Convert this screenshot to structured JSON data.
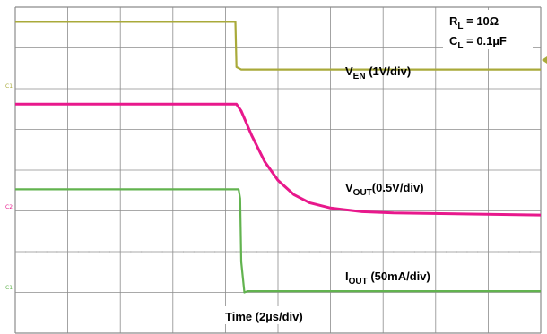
{
  "chart_data": {
    "type": "line",
    "title": "",
    "grid": true,
    "divisions": {
      "x": 10,
      "y": 8
    },
    "x_unit": "div",
    "y_unit": "div",
    "conditions": {
      "rl_main": "R",
      "rl_sub": "L",
      "rl_val": " = 10Ω",
      "cl_main": "C",
      "cl_sub": "L",
      "cl_val": " = 0.1µF"
    },
    "time_label": "Time (2µs/div)",
    "series": [
      {
        "key": "ven",
        "label_main": "V",
        "label_sub": "EN",
        "label_scale": " (1V/div)",
        "marker": "C1",
        "color": "#a9aa3a",
        "points": [
          [
            0,
            7.64
          ],
          [
            4.19,
            7.64
          ],
          [
            4.21,
            6.53
          ],
          [
            4.3,
            6.47
          ],
          [
            10,
            6.47
          ]
        ]
      },
      {
        "key": "vout",
        "label_main": "V",
        "label_sub": "OUT",
        "label_scale": "(0.5V/div)",
        "marker": "C2",
        "color": "#e8188c",
        "points": [
          [
            0,
            5.62
          ],
          [
            4.21,
            5.62
          ],
          [
            4.3,
            5.45
          ],
          [
            4.5,
            4.85
          ],
          [
            4.75,
            4.2
          ],
          [
            5.0,
            3.75
          ],
          [
            5.3,
            3.4
          ],
          [
            5.6,
            3.2
          ],
          [
            6.0,
            3.07
          ],
          [
            6.6,
            2.98
          ],
          [
            7.2,
            2.95
          ],
          [
            10,
            2.9
          ]
        ]
      },
      {
        "key": "iout",
        "label_main": "I",
        "label_sub": "OUT",
        "label_scale": " (50mA/div)",
        "marker": "C1",
        "color": "#62b34f",
        "points": [
          [
            0,
            3.53
          ],
          [
            4.25,
            3.53
          ],
          [
            4.28,
            3.3
          ],
          [
            4.3,
            1.75
          ],
          [
            4.36,
            1.0
          ],
          [
            4.42,
            1.03
          ],
          [
            10,
            1.03
          ]
        ]
      }
    ]
  }
}
